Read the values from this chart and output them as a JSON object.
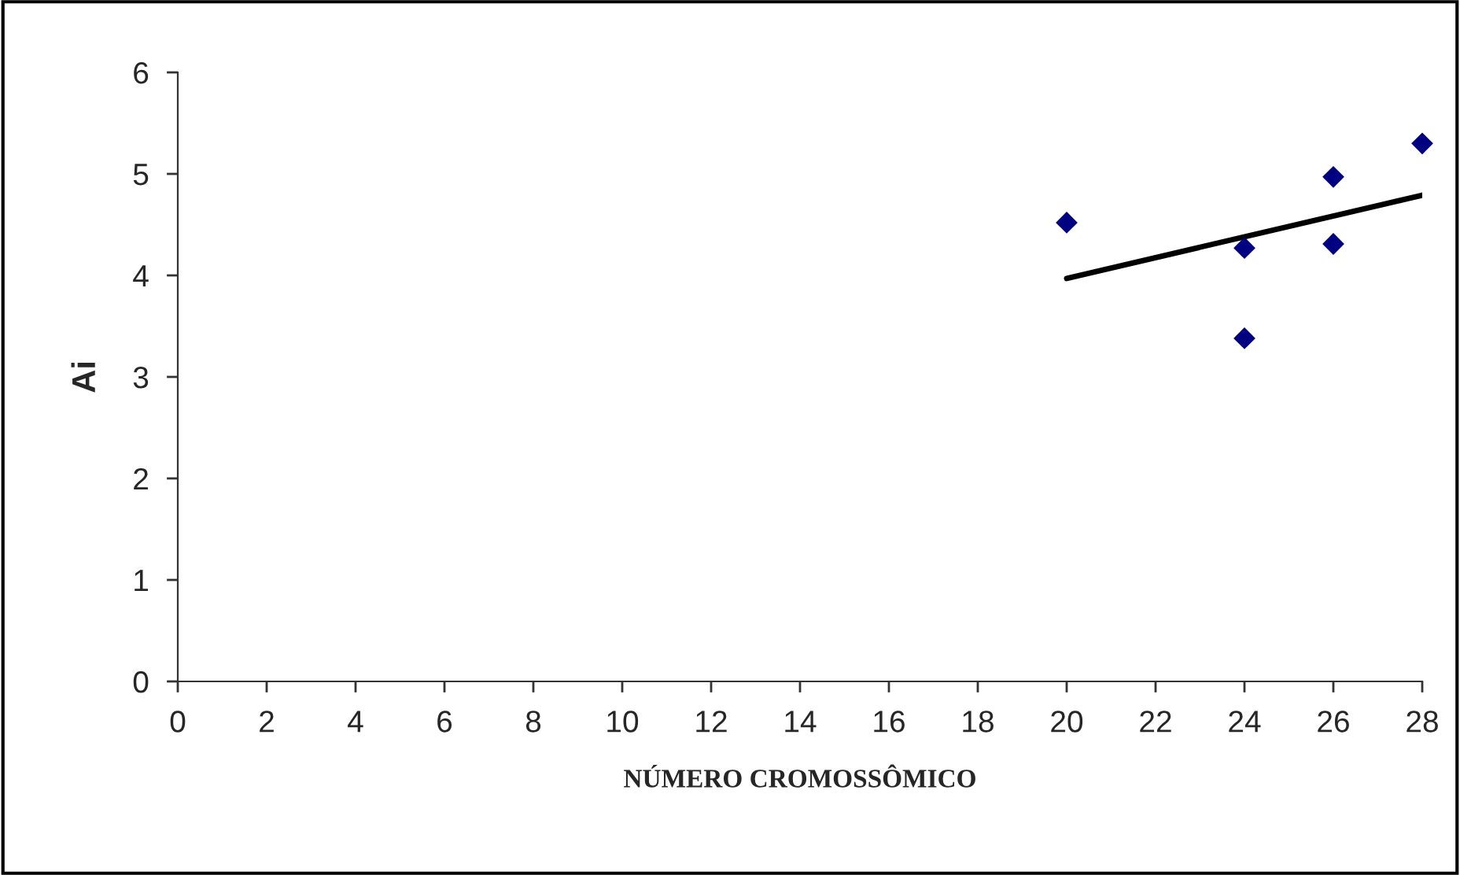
{
  "chart_data": {
    "type": "scatter",
    "xlabel": "NÚMERO CROMOSSÔMICO",
    "ylabel": "Ai",
    "series": [
      {
        "color": "#000080",
        "marker": "diamond",
        "x": [
          20,
          24,
          24,
          26,
          26,
          28
        ],
        "values": [
          4.52,
          4.27,
          3.38,
          4.97,
          4.31,
          5.3
        ]
      },
      {
        "type": "line",
        "color": "#000000",
        "marker": "none",
        "line_style": "solid",
        "x": [
          20,
          28
        ],
        "values": [
          3.97,
          4.79
        ]
      }
    ],
    "xlim": [
      0,
      28
    ],
    "xticks": [
      0,
      2,
      4,
      6,
      8,
      10,
      12,
      14,
      16,
      18,
      20,
      22,
      24,
      26,
      28
    ],
    "ylim": [
      0,
      6
    ],
    "yticks": [
      0,
      1,
      2,
      3,
      4,
      5,
      6
    ],
    "grid": false,
    "legend": false
  }
}
